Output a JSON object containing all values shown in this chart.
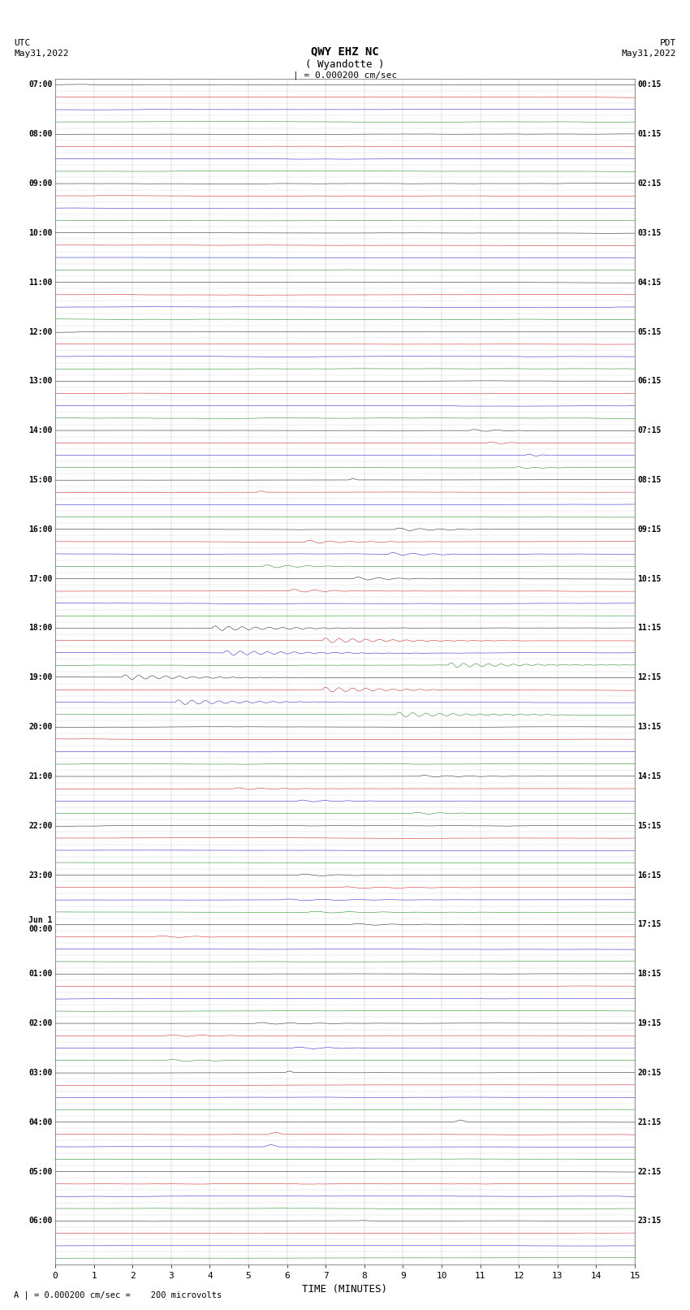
{
  "title_line1": "QWY EHZ NC",
  "title_line2": "( Wyandotte )",
  "scale_label": "| = 0.000200 cm/sec",
  "footer": "A | = 0.000200 cm/sec =    200 microvolts",
  "left_times_utc": [
    "07:00",
    "08:00",
    "09:00",
    "10:00",
    "11:00",
    "12:00",
    "13:00",
    "14:00",
    "15:00",
    "16:00",
    "17:00",
    "18:00",
    "19:00",
    "20:00",
    "21:00",
    "22:00",
    "23:00",
    "Jun 1\n00:00",
    "01:00",
    "02:00",
    "03:00",
    "04:00",
    "05:00",
    "06:00"
  ],
  "right_times_pdt": [
    "00:15",
    "01:15",
    "02:15",
    "03:15",
    "04:15",
    "05:15",
    "06:15",
    "07:15",
    "08:15",
    "09:15",
    "10:15",
    "11:15",
    "12:15",
    "13:15",
    "14:15",
    "15:15",
    "16:15",
    "17:15",
    "18:15",
    "19:15",
    "20:15",
    "21:15",
    "22:15",
    "23:15"
  ],
  "n_rows": 96,
  "minutes_per_row": 15,
  "x_ticks": [
    0,
    1,
    2,
    3,
    4,
    5,
    6,
    7,
    8,
    9,
    10,
    11,
    12,
    13,
    14,
    15
  ],
  "bg_color": "#ffffff",
  "line_color_black": "#000000",
  "line_color_red": "#cc0000",
  "line_color_blue": "#0000cc",
  "line_color_green": "#007700",
  "grid_color": "#888888",
  "noise_amplitude": 0.025
}
